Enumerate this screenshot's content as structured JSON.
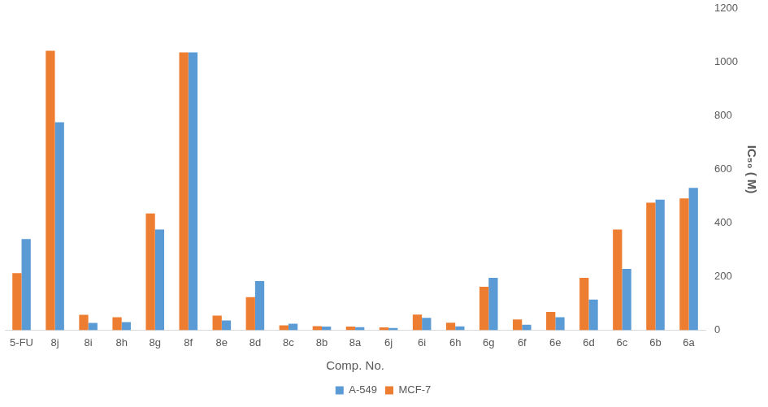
{
  "chart_data": {
    "type": "bar",
    "x_label": "Comp. No.",
    "y_label": "IC₅₀ ( M)",
    "categories": [
      "5-FU",
      "8j",
      "8i",
      "8h",
      "8g",
      "8f",
      "8e",
      "8d",
      "8c",
      "8b",
      "8a",
      "6j",
      "6i",
      "6h",
      "6g",
      "6f",
      "6e",
      "6d",
      "6c",
      "6b",
      "6a"
    ],
    "series": [
      {
        "name": "MCF-7",
        "color": "#ed7d31",
        "values": [
          213,
          1043,
          57,
          48,
          436,
          1037,
          54,
          123,
          18,
          15,
          13,
          10,
          58,
          28,
          162,
          40,
          68,
          195,
          376,
          476,
          492
        ]
      },
      {
        "name": "A-549",
        "color": "#5b9bd5",
        "values": [
          340,
          776,
          27,
          30,
          376,
          1037,
          36,
          183,
          24,
          13,
          11,
          8,
          46,
          14,
          195,
          20,
          48,
          114,
          229,
          487,
          531
        ]
      }
    ],
    "ylim": [
      0,
      1200
    ],
    "yticks": [
      0,
      200,
      400,
      600,
      800,
      1000,
      1200
    ],
    "grid": false,
    "legend": "bottom"
  }
}
